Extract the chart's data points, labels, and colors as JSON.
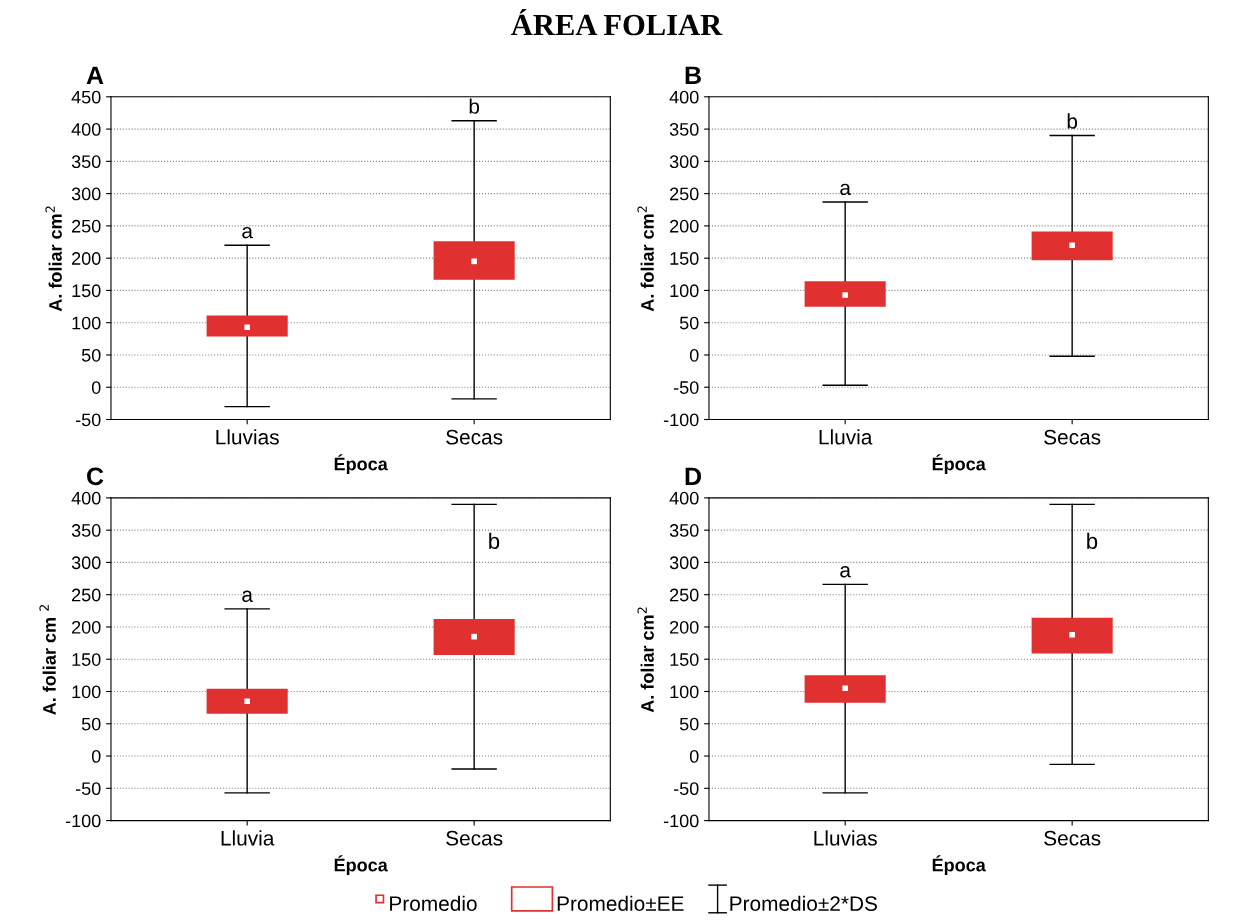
{
  "chart_data": [
    {
      "type": "box",
      "title": "A",
      "ylabel": "A. foliar cm$^{2}$",
      "xlabel": "Época",
      "categories": [
        "Lluvias",
        "Secas"
      ],
      "color": "#e03030",
      "grid": "y",
      "ylim": [
        -50,
        450
      ],
      "yticks": [
        -50,
        0,
        50,
        100,
        150,
        200,
        250,
        300,
        350,
        400,
        450
      ],
      "boxes": [
        {
          "low": -30,
          "q1": 80,
          "median": 93,
          "q3": 110,
          "high": 220,
          "mean": 93
        },
        {
          "low": -18,
          "q1": 168,
          "median": 195,
          "q3": 225,
          "high": 413,
          "mean": 195
        }
      ],
      "annotations": [
        "ÁREA FOLIAR",
        {
          "text": "a",
          "x": "Lluvias",
          "y": 220
        },
        {
          "text": "b",
          "x": "Secas",
          "y": 413
        }
      ]
    },
    {
      "type": "box",
      "title": "B",
      "ylabel": "A. foliar cm$^{2}$",
      "xlabel": "Época",
      "categories": [
        "Lluvia",
        "Secas"
      ],
      "color": "#e03030",
      "grid": "y",
      "ylim": [
        -100,
        400
      ],
      "yticks": [
        -100,
        -50,
        0,
        50,
        100,
        150,
        200,
        250,
        300,
        350,
        400
      ],
      "boxes": [
        {
          "low": -47,
          "q1": 76,
          "median": 93,
          "q3": 113,
          "high": 237,
          "mean": 93
        },
        {
          "low": -2,
          "q1": 148,
          "median": 170,
          "q3": 190,
          "high": 340,
          "mean": 170
        }
      ],
      "annotations": [
        {
          "text": "a",
          "x": "Lluvia",
          "y": 237
        },
        {
          "text": "b",
          "x": "Secas",
          "y": 340
        }
      ]
    },
    {
      "type": "box",
      "title": "C",
      "ylabel": "A. foliar cm $^{2}$",
      "xlabel": "Época",
      "categories": [
        "Lluvia",
        "Secas"
      ],
      "color": "#e03030",
      "grid": "y",
      "ylim": [
        -100,
        400
      ],
      "yticks": [
        -100,
        -50,
        0,
        50,
        100,
        150,
        200,
        250,
        300,
        350,
        400
      ],
      "boxes": [
        {
          "low": -57,
          "q1": 67,
          "median": 85,
          "q3": 103,
          "high": 228,
          "mean": 85
        },
        {
          "low": -20,
          "q1": 158,
          "median": 185,
          "q3": 211,
          "high": 390,
          "mean": 185
        }
      ],
      "annotations": [
        "b",
        {
          "text": "a",
          "x": "Lluvia",
          "y": 228
        }
      ]
    },
    {
      "type": "box",
      "title": "D",
      "ylabel": "A. foliar cm$^{2}$",
      "xlabel": "Época",
      "categories": [
        "Lluvias",
        "Secas"
      ],
      "color": "#e03030",
      "grid": "y",
      "ylim": [
        -100,
        400
      ],
      "yticks": [
        -100,
        -50,
        0,
        50,
        100,
        150,
        200,
        250,
        300,
        350,
        400
      ],
      "boxes": [
        {
          "low": -57,
          "q1": 84,
          "median": 105,
          "q3": 124,
          "high": 266,
          "mean": 105
        },
        {
          "low": -13,
          "q1": 160,
          "median": 188,
          "q3": 213,
          "high": 390,
          "mean": 188
        }
      ],
      "annotations": [
        "b",
        "Promedio",
        "Promedio±EE",
        "Promedio±2*DS",
        {
          "text": "a",
          "x": "Lluvias",
          "y": 266
        }
      ]
    }
  ]
}
